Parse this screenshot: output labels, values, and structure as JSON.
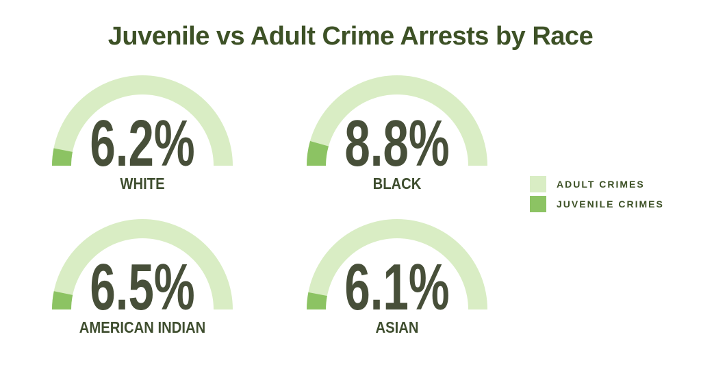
{
  "title": "Juvenile vs Adult Crime Arrests by Race",
  "colors": {
    "background": "#ffffff",
    "title_text": "#3d5126",
    "value_text": "#474f39",
    "label_text": "#3f4e2f",
    "legend_text": "#3d5126",
    "adult": "#d9edc4",
    "juvenile": "#8cc363"
  },
  "legend": {
    "items": [
      {
        "label": "ADULT CRIMES",
        "swatch": "adult"
      },
      {
        "label": "JUVENILE CRIMES",
        "swatch": "juvenile"
      }
    ]
  },
  "chart_data": {
    "type": "gauge",
    "title": "Juvenile vs Adult Crime Arrests by Race",
    "description": "Four 180-degree semicircular donut gauges; the dark green segment starting at the lower-left of each arc represents the juvenile share (value % of the half circle), the light green remainder represents adult crimes.",
    "unit": "%",
    "gauge_range": [
      0,
      100
    ],
    "legend_position": "right",
    "legend_entries": [
      "ADULT CRIMES",
      "JUVENILE CRIMES"
    ],
    "gauges": [
      {
        "label": "WHITE",
        "value": 6.2,
        "display": "6.2%"
      },
      {
        "label": "BLACK",
        "value": 8.8,
        "display": "8.8%"
      },
      {
        "label": "AMERICAN INDIAN",
        "value": 6.5,
        "display": "6.5%"
      },
      {
        "label": "ASIAN",
        "value": 6.1,
        "display": "6.1%"
      }
    ]
  }
}
